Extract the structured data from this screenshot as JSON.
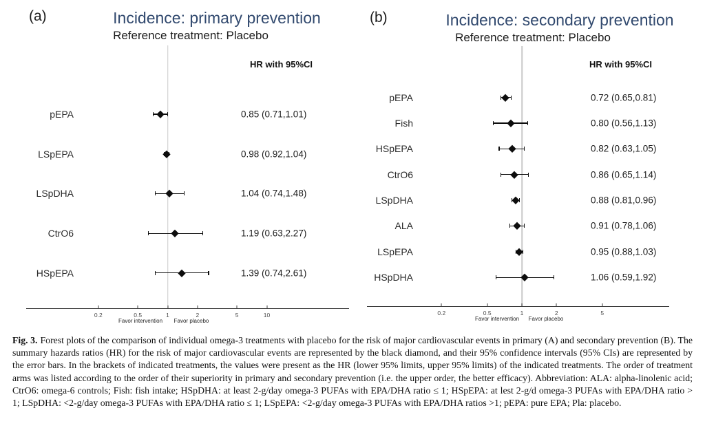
{
  "figure": {
    "panel_tags": [
      "(a)",
      "(b)"
    ],
    "caption": {
      "label": "Fig. 3.",
      "text": "Forest plots of the comparison of individual omega-3 treatments with placebo for the risk of major cardiovascular events in primary (A) and secondary prevention (B). The summary hazards ratios (HR) for the risk of major cardiovascular events are represented by the black diamond, and their 95% confidence intervals (95% CIs) are represented by the error bars. In the brackets of indicated treatments, the values were present as the HR (lower 95% limits, upper 95% limits) of the indicated treatments. The order of treatment arms was listed according to the order of their superiority in primary and secondary prevention (i.e. the upper order, the better efficacy). Abbreviation: ALA: alpha-linolenic acid; CtrO6: omega-6 controls; Fish: fish intake; HSpDHA: at least 2-g/day omega-3 PUFAs with EPA/DHA ratio ≤ 1; HSpEPA: at lest 2-g/d omega-3 PUFAs with EPA/DHA ratio > 1; LSpDHA: <2-g/day omega-3 PUFAs with EPA/DHA ratio ≤ 1; LSpEPA: <2-g/day omega-3 PUFAs with EPA/DHA ratios >1; pEPA: pure EPA; Pla: placebo."
    },
    "colors": {
      "title_blue": "#31496e",
      "diamond_black": "#0d0d0d",
      "reference_line_gray": "#c9c9c9"
    }
  },
  "chart_data": [
    {
      "type": "forest",
      "panel": "a",
      "title": "Incidence: primary prevention",
      "subtitle": "Reference treatment: Placebo",
      "value_header": "HR with 95%CI",
      "x_scale": "log",
      "x_ticks": [
        0.2,
        0.5,
        1,
        2,
        5,
        10
      ],
      "x_tick_labels": [
        "0.2",
        "0.5",
        "1",
        "2",
        "5",
        "10"
      ],
      "favor_left_label": "Favor intervention",
      "favor_right_label": "Favor placebo",
      "reference_value": 1,
      "rows": [
        {
          "label": "pEPA",
          "hr": 0.85,
          "ci_low": 0.71,
          "ci_high": 1.01,
          "text": "0.85 (0.71,1.01)"
        },
        {
          "label": "LSpEPA",
          "hr": 0.98,
          "ci_low": 0.92,
          "ci_high": 1.04,
          "text": "0.98 (0.92,1.04)"
        },
        {
          "label": "LSpDHA",
          "hr": 1.04,
          "ci_low": 0.74,
          "ci_high": 1.48,
          "text": "1.04 (0.74,1.48)"
        },
        {
          "label": "CtrO6",
          "hr": 1.19,
          "ci_low": 0.63,
          "ci_high": 2.27,
          "text": "1.19 (0.63,2.27)"
        },
        {
          "label": "HSpEPA",
          "hr": 1.39,
          "ci_low": 0.74,
          "ci_high": 2.61,
          "text": "1.39 (0.74,2.61)"
        }
      ]
    },
    {
      "type": "forest",
      "panel": "b",
      "title": "Incidence: secondary prevention",
      "subtitle": "Reference treatment: Placebo",
      "value_header": "HR with 95%CI",
      "x_scale": "log",
      "x_ticks": [
        0.2,
        0.5,
        1,
        2,
        5
      ],
      "x_tick_labels": [
        "0.2",
        "0.5",
        "1",
        "2",
        "5"
      ],
      "favor_left_label": "Favor intervention",
      "favor_right_label": "Favor placebo",
      "reference_value": 1,
      "rows": [
        {
          "label": "pEPA",
          "hr": 0.72,
          "ci_low": 0.65,
          "ci_high": 0.81,
          "text": "0.72 (0.65,0.81)"
        },
        {
          "label": "Fish",
          "hr": 0.8,
          "ci_low": 0.56,
          "ci_high": 1.13,
          "text": "0.80 (0.56,1.13)"
        },
        {
          "label": "HSpEPA",
          "hr": 0.82,
          "ci_low": 0.63,
          "ci_high": 1.05,
          "text": "0.82 (0.63,1.05)"
        },
        {
          "label": "CtrO6",
          "hr": 0.86,
          "ci_low": 0.65,
          "ci_high": 1.14,
          "text": "0.86 (0.65,1.14)"
        },
        {
          "label": "LSpDHA",
          "hr": 0.88,
          "ci_low": 0.81,
          "ci_high": 0.96,
          "text": "0.88 (0.81,0.96)"
        },
        {
          "label": "ALA",
          "hr": 0.91,
          "ci_low": 0.78,
          "ci_high": 1.06,
          "text": "0.91 (0.78,1.06)"
        },
        {
          "label": "LSpEPA",
          "hr": 0.95,
          "ci_low": 0.88,
          "ci_high": 1.03,
          "text": "0.95 (0.88,1.03)"
        },
        {
          "label": "HSpDHA",
          "hr": 1.06,
          "ci_low": 0.59,
          "ci_high": 1.92,
          "text": "1.06 (0.59,1.92)"
        }
      ]
    }
  ]
}
